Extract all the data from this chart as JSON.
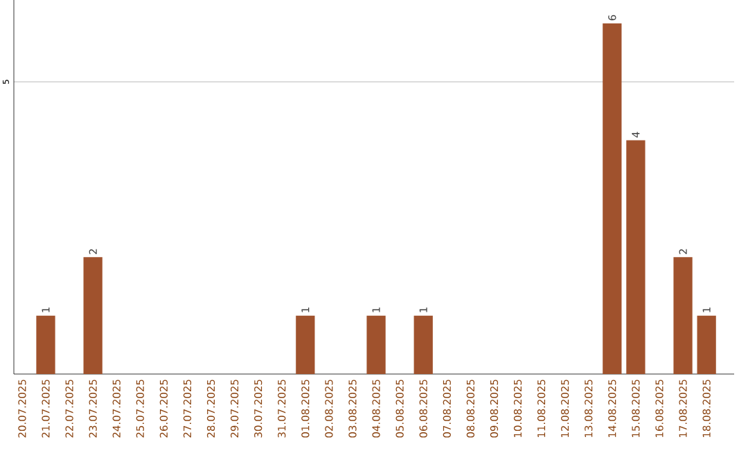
{
  "chart_data": {
    "type": "bar",
    "categories": [
      "20.07.2025",
      "21.07.2025",
      "22.07.2025",
      "23.07.2025",
      "24.07.2025",
      "25.07.2025",
      "26.07.2025",
      "27.07.2025",
      "28.07.2025",
      "29.07.2025",
      "30.07.2025",
      "31.07.2025",
      "01.08.2025",
      "02.08.2025",
      "03.08.2025",
      "04.08.2025",
      "05.08.2025",
      "06.08.2025",
      "07.08.2025",
      "08.08.2025",
      "09.08.2025",
      "10.08.2025",
      "11.08.2025",
      "12.08.2025",
      "13.08.2025",
      "14.08.2025",
      "15.08.2025",
      "16.08.2025",
      "17.08.2025",
      "18.08.2025"
    ],
    "values": [
      0,
      1,
      0,
      2,
      0,
      0,
      0,
      0,
      0,
      0,
      0,
      0,
      1,
      0,
      0,
      1,
      0,
      1,
      0,
      0,
      0,
      0,
      0,
      0,
      0,
      6,
      4,
      0,
      2,
      1
    ],
    "value_labels": [
      null,
      "1",
      null,
      "2",
      null,
      null,
      null,
      null,
      null,
      null,
      null,
      null,
      "1",
      null,
      null,
      "1",
      null,
      "1",
      null,
      null,
      null,
      null,
      null,
      null,
      null,
      "6",
      "4",
      null,
      "2",
      "1"
    ],
    "color": "#a0522d",
    "ylim": [
      0,
      6.4
    ],
    "yticks": [
      5
    ],
    "grid": "y"
  }
}
